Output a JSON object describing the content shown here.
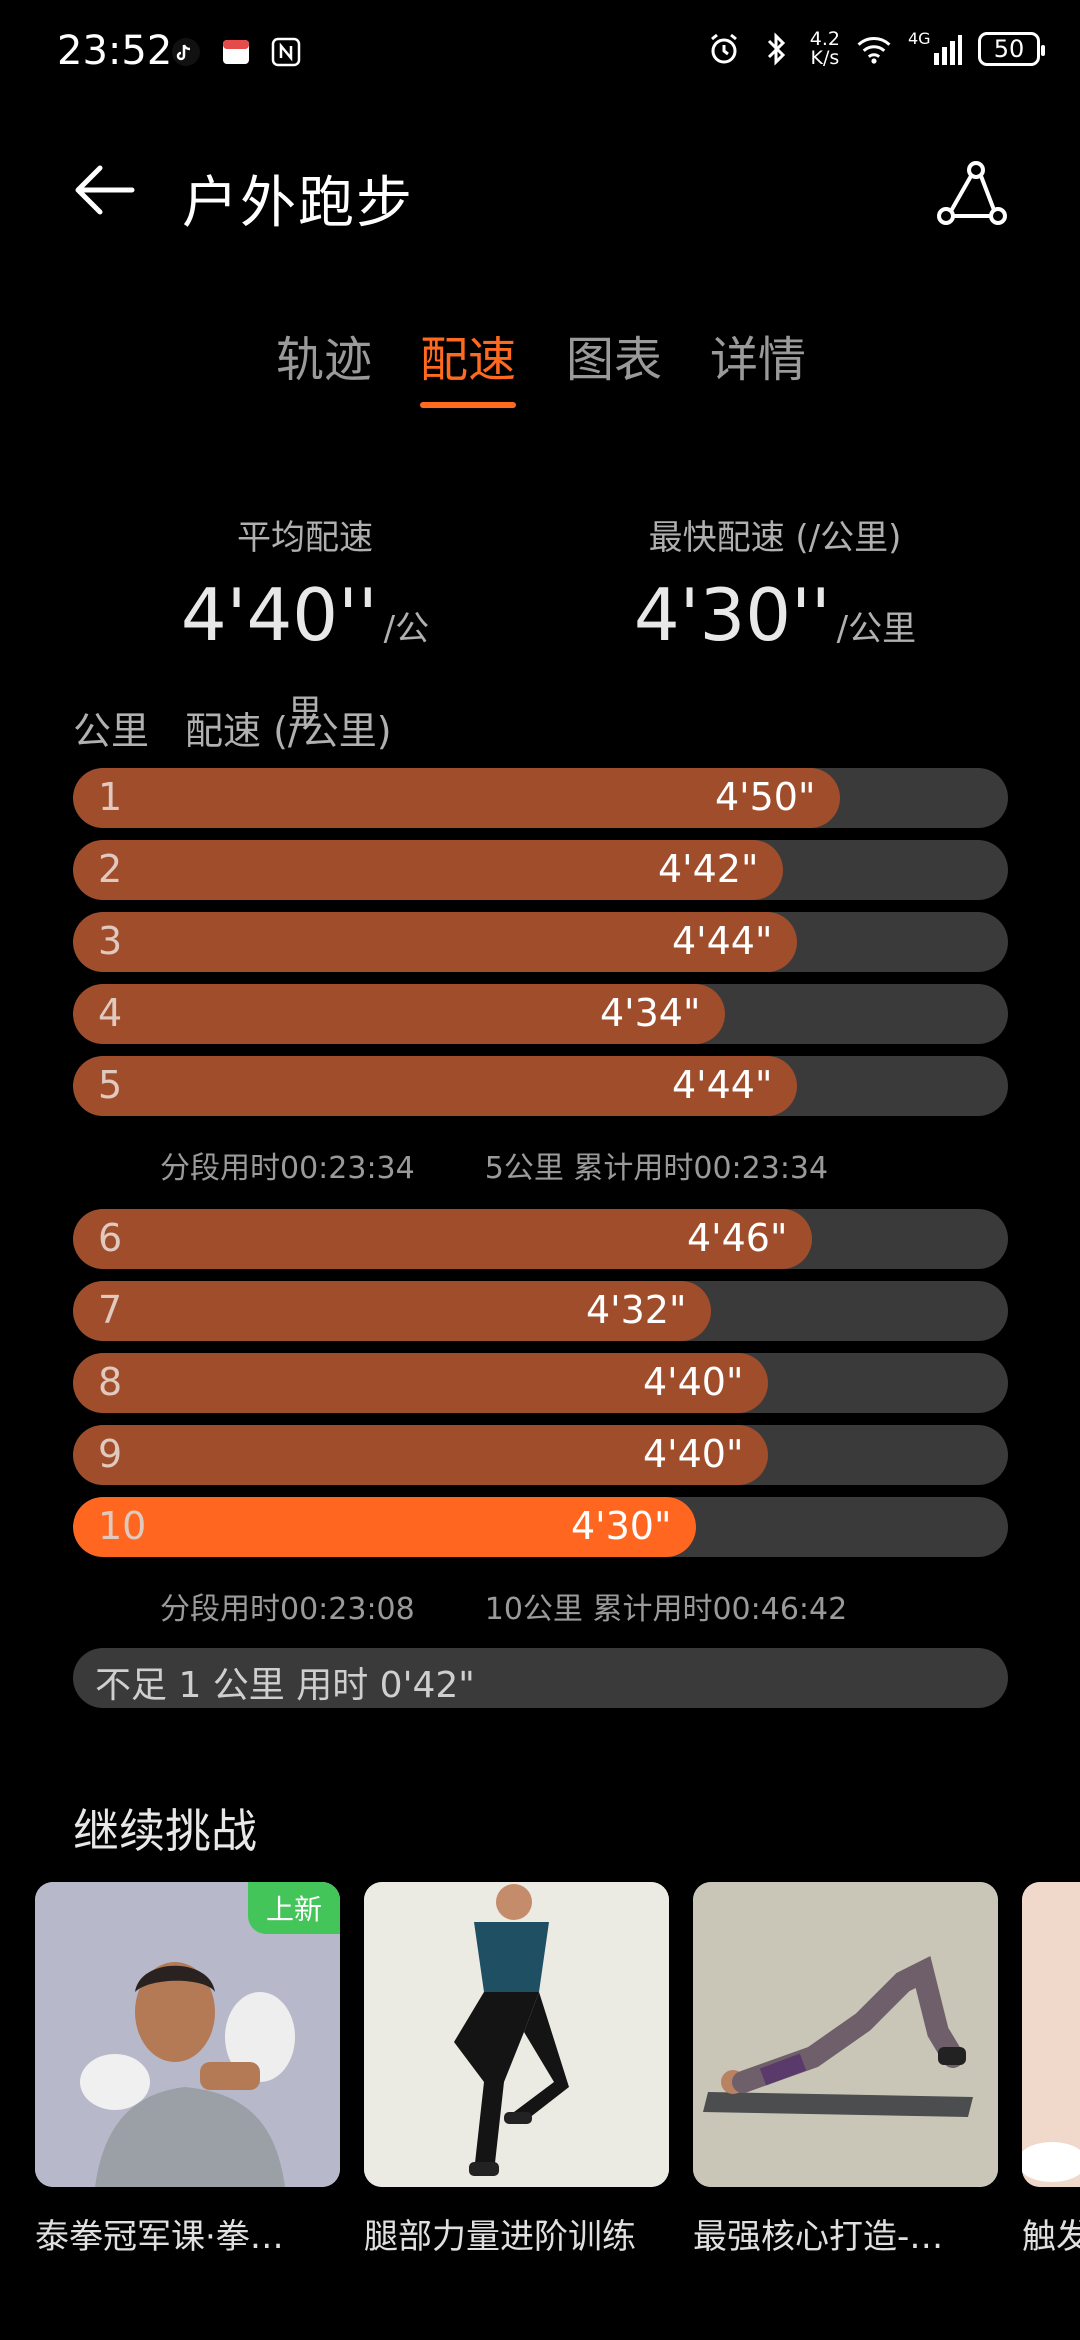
{
  "status_bar": {
    "time": "23:52",
    "network_speed_top": "4.2",
    "network_speed_bottom": "K/s",
    "signal_label": "4G",
    "battery": "50"
  },
  "header": {
    "title": "户外跑步"
  },
  "tabs": [
    {
      "label": "轨迹",
      "active": false
    },
    {
      "label": "配速",
      "active": true
    },
    {
      "label": "图表",
      "active": false
    },
    {
      "label": "详情",
      "active": false
    }
  ],
  "summary": {
    "avg_label": "平均配速",
    "avg_value": "4'40''",
    "avg_unit": "/公里",
    "fast_label": "最快配速 (/公里)",
    "fast_value": "4'30''",
    "fast_unit": "/公里"
  },
  "table_header": {
    "km": "公里",
    "pace": "配速 (/公里)"
  },
  "chart_data": {
    "type": "bar",
    "categories": [
      "1",
      "2",
      "3",
      "4",
      "5",
      "6",
      "7",
      "8",
      "9",
      "10"
    ],
    "values_seconds": [
      290,
      282,
      284,
      274,
      284,
      286,
      272,
      280,
      280,
      270
    ],
    "labels": [
      "4'50\"",
      "4'42\"",
      "4'44\"",
      "4'34\"",
      "4'44\"",
      "4'46\"",
      "4'32\"",
      "4'40\"",
      "4'40\"",
      "4'30\""
    ],
    "best_index": 9
  },
  "splits": [
    {
      "segment": "分段用时00:23:34",
      "cumulative": "5公里 累计用时00:23:34"
    },
    {
      "segment": "分段用时00:23:08",
      "cumulative": "10公里 累计用时00:46:42"
    }
  ],
  "remainder": "不足 1 公里 用时 0'42\"",
  "challenge": {
    "title": "继续挑战",
    "new_badge": "上新",
    "cards": [
      {
        "title": "泰拳冠军课·拳…"
      },
      {
        "title": "腿部力量进阶训练"
      },
      {
        "title": "最强核心打造-…"
      },
      {
        "title": "触发"
      }
    ]
  },
  "colors": {
    "accent": "#ff6a1f",
    "bar": "#a04d2c",
    "track": "#3a3a3a",
    "badge": "#44c55a"
  }
}
